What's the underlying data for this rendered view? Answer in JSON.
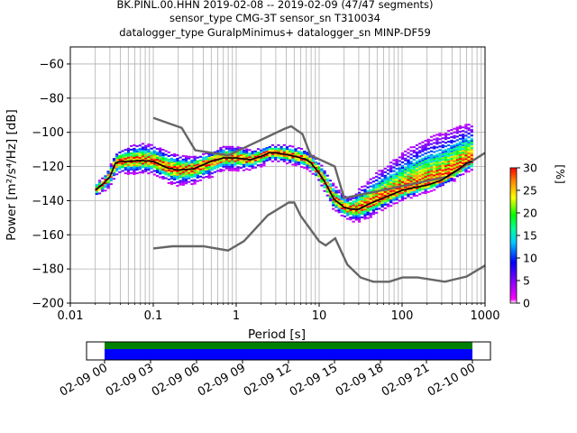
{
  "title_lines": [
    "BK.PINL.00.HHN   2019-02-08 -- 2019-02-09  (47/47 segments)",
    "sensor_type CMG-3T sensor_sn T310034",
    "datalogger_type GuralpMinimus+ datalogger_sn MINP-DF59"
  ],
  "chart_data": {
    "type": "heatmap",
    "xlabel": "Period [s]",
    "ylabel": "Power [m²/s⁴/Hz] [dB]",
    "x_scale": "log",
    "xlim": [
      0.01,
      1000
    ],
    "ylim": [
      -200,
      -50
    ],
    "x_ticks": [
      0.01,
      0.1,
      1,
      10,
      100,
      1000
    ],
    "x_tick_labels": [
      "0.01",
      "0.1",
      "1",
      "10",
      "100",
      "1000"
    ],
    "y_ticks": [
      -200,
      -180,
      -160,
      -140,
      -120,
      -100,
      -80,
      -60
    ],
    "y_tick_labels": [
      "−200",
      "−180",
      "−160",
      "−140",
      "−120",
      "−100",
      "−80",
      "−60"
    ],
    "grid": true,
    "colorbar": {
      "label": "[%]",
      "range": [
        0,
        30
      ],
      "ticks": [
        0,
        5,
        10,
        15,
        20,
        25,
        30
      ],
      "tick_labels": [
        "0",
        "5",
        "10",
        "15",
        "20",
        "25",
        "30"
      ]
    },
    "noise_models": [
      {
        "role": "high-noise-model",
        "x": [
          0.1,
          0.17,
          0.22,
          0.32,
          0.8,
          3.8,
          4.6,
          6.3,
          7.9,
          15.4,
          20,
          354.8,
          1000
        ],
        "y": [
          -91.5,
          -95.5,
          -97.4,
          -110.5,
          -113.5,
          -98,
          -96.5,
          -101,
          -113.5,
          -120,
          -138.5,
          -126,
          -112
        ]
      },
      {
        "role": "low-noise-model",
        "x": [
          0.1,
          0.17,
          0.4,
          0.8,
          1.24,
          2.4,
          4.3,
          5,
          6,
          10,
          12,
          15.6,
          21.9,
          31.6,
          45,
          70,
          101,
          154,
          328,
          600,
          1000
        ],
        "y": [
          -168,
          -166.7,
          -166.7,
          -169.2,
          -163.7,
          -148.6,
          -141.1,
          -141.1,
          -149,
          -163.8,
          -166.2,
          -162.1,
          -177.5,
          -185,
          -187.5,
          -187.5,
          -185,
          -185,
          -187.5,
          -184.4,
          -178
        ]
      }
    ],
    "mean_curve": {
      "role": "mean-psd",
      "x": [
        0.02,
        0.025,
        0.03,
        0.035,
        0.04,
        0.05,
        0.07,
        0.1,
        0.15,
        0.2,
        0.3,
        0.5,
        0.7,
        1,
        1.5,
        2,
        2.5,
        3,
        4,
        5,
        6,
        7,
        8,
        10,
        12,
        15,
        20,
        25,
        30,
        40,
        50,
        70,
        100,
        150,
        200,
        300,
        400,
        500,
        600,
        700
      ],
      "y": [
        -134,
        -130,
        -126,
        -118,
        -117,
        -117,
        -116.5,
        -117,
        -121,
        -122,
        -121.5,
        -117,
        -115,
        -115,
        -116,
        -114,
        -112,
        -112,
        -113,
        -114,
        -115,
        -116,
        -118,
        -124,
        -130,
        -139,
        -144,
        -145,
        -145,
        -142,
        -140,
        -137,
        -134,
        -132,
        -131,
        -128,
        -124,
        -121,
        -118,
        -117
      ]
    },
    "psd_spread": {
      "x": [
        0.02,
        0.025,
        0.03,
        0.035,
        0.04,
        0.05,
        0.07,
        0.1,
        0.15,
        0.2,
        0.3,
        0.5,
        0.7,
        1,
        1.5,
        2,
        2.5,
        3,
        4,
        5,
        6,
        7,
        8,
        10,
        12,
        15,
        20,
        25,
        30,
        40,
        50,
        70,
        100,
        150,
        200,
        300,
        400,
        500,
        600,
        700
      ],
      "upper": [
        -130,
        -126,
        -120,
        -112,
        -110,
        -108,
        -106,
        -107,
        -111,
        -113,
        -114,
        -111,
        -108,
        -108,
        -110,
        -109,
        -107,
        -107,
        -107,
        -108,
        -109,
        -110,
        -112,
        -117,
        -122,
        -130,
        -137,
        -138,
        -133,
        -128,
        -123,
        -118,
        -112,
        -106,
        -103,
        -100,
        -98,
        -96,
        -95,
        -95
      ],
      "lower": [
        -138,
        -135,
        -132,
        -126,
        -124,
        -124,
        -124,
        -124,
        -129,
        -131,
        -130,
        -126,
        -122,
        -122,
        -122,
        -120,
        -117,
        -117,
        -118,
        -119,
        -120,
        -121,
        -123,
        -129,
        -136,
        -145,
        -150,
        -152,
        -152,
        -150,
        -147,
        -143,
        -140,
        -137,
        -135,
        -132,
        -129,
        -126,
        -123,
        -122
      ]
    },
    "coverage": {
      "time_ticks": [
        "02-09 00",
        "02-09 03",
        "02-09 06",
        "02-09 09",
        "02-09 12",
        "02-09 15",
        "02-09 18",
        "02-09 21",
        "02-10 00"
      ],
      "bands": [
        {
          "role": "data-available",
          "color": "#008000"
        },
        {
          "role": "data-used",
          "color": "#0000ff"
        }
      ]
    }
  }
}
